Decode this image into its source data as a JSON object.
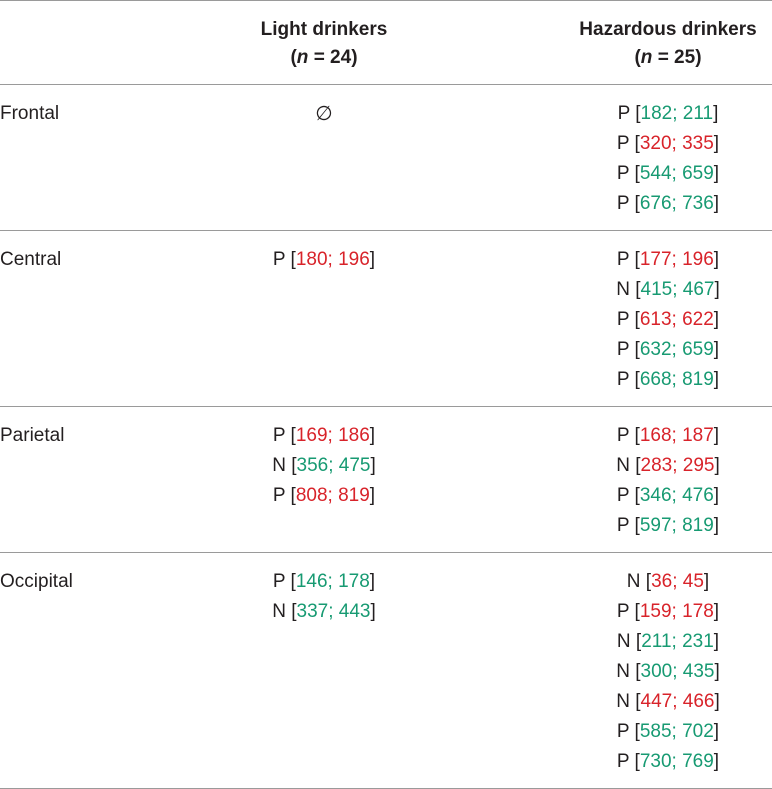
{
  "header": {
    "light": {
      "title": "Light drinkers",
      "n_label": "n",
      "n_value": "= 24",
      "open": "(",
      "close": ")"
    },
    "hazardous": {
      "title": "Hazardous drinkers",
      "n_label": "n",
      "n_value": "= 25",
      "open": "(",
      "close": ")"
    }
  },
  "colors": {
    "green": "#179a72",
    "red": "#d8232a",
    "text": "#231f20",
    "rule": "#9a9a9a"
  },
  "rows": [
    {
      "region": "Frontal",
      "light": [],
      "light_empty": "∅",
      "hazardous": [
        {
          "pol": "P",
          "a": "182",
          "b": "211",
          "color": "green"
        },
        {
          "pol": "P",
          "a": "320",
          "b": "335",
          "color": "red"
        },
        {
          "pol": "P",
          "a": "544",
          "b": "659",
          "color": "green"
        },
        {
          "pol": "P",
          "a": "676",
          "b": "736",
          "color": "green"
        }
      ]
    },
    {
      "region": "Central",
      "light": [
        {
          "pol": "P",
          "a": "180",
          "b": "196",
          "color": "red"
        }
      ],
      "hazardous": [
        {
          "pol": "P",
          "a": "177",
          "b": "196",
          "color": "red"
        },
        {
          "pol": "N",
          "a": "415",
          "b": "467",
          "color": "green"
        },
        {
          "pol": "P",
          "a": "613",
          "b": "622",
          "color": "red"
        },
        {
          "pol": "P",
          "a": "632",
          "b": "659",
          "color": "green"
        },
        {
          "pol": "P",
          "a": "668",
          "b": "819",
          "color": "green"
        }
      ]
    },
    {
      "region": "Parietal",
      "light": [
        {
          "pol": "P",
          "a": "169",
          "b": "186",
          "color": "red"
        },
        {
          "pol": "N",
          "a": "356",
          "b": "475",
          "color": "green"
        },
        {
          "pol": "P",
          "a": "808",
          "b": "819",
          "color": "red"
        }
      ],
      "hazardous": [
        {
          "pol": "P",
          "a": "168",
          "b": "187",
          "color": "red"
        },
        {
          "pol": "N",
          "a": "283",
          "b": "295",
          "color": "red"
        },
        {
          "pol": "P",
          "a": "346",
          "b": "476",
          "color": "green"
        },
        {
          "pol": "P",
          "a": "597",
          "b": "819",
          "color": "green"
        }
      ]
    },
    {
      "region": "Occipital",
      "light": [
        {
          "pol": "P",
          "a": "146",
          "b": "178",
          "color": "green"
        },
        {
          "pol": "N",
          "a": "337",
          "b": "443",
          "color": "green"
        }
      ],
      "hazardous": [
        {
          "pol": "N",
          "a": "36",
          "b": "45",
          "color": "red"
        },
        {
          "pol": "P",
          "a": "159",
          "b": "178",
          "color": "red"
        },
        {
          "pol": "N",
          "a": "211",
          "b": "231",
          "color": "green"
        },
        {
          "pol": "N",
          "a": "300",
          "b": "435",
          "color": "green"
        },
        {
          "pol": "N",
          "a": "447",
          "b": "466",
          "color": "red"
        },
        {
          "pol": "P",
          "a": "585",
          "b": "702",
          "color": "green"
        },
        {
          "pol": "P",
          "a": "730",
          "b": "769",
          "color": "green"
        }
      ]
    }
  ]
}
